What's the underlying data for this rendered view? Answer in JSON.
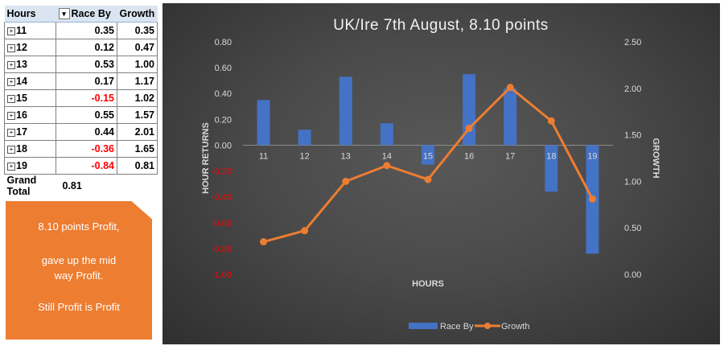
{
  "table": {
    "headers": [
      "Hours",
      "Race By",
      "Growth"
    ],
    "rows": [
      {
        "hour": "11",
        "race_by": "0.35",
        "growth": "0.35"
      },
      {
        "hour": "12",
        "race_by": "0.12",
        "growth": "0.47"
      },
      {
        "hour": "13",
        "race_by": "0.53",
        "growth": "1.00"
      },
      {
        "hour": "14",
        "race_by": "0.17",
        "growth": "1.17"
      },
      {
        "hour": "15",
        "race_by": "-0.15",
        "growth": "1.02"
      },
      {
        "hour": "16",
        "race_by": "0.55",
        "growth": "1.57"
      },
      {
        "hour": "17",
        "race_by": "0.44",
        "growth": "2.01"
      },
      {
        "hour": "18",
        "race_by": "-0.36",
        "growth": "1.65"
      },
      {
        "hour": "19",
        "race_by": "-0.84",
        "growth": "0.81"
      }
    ],
    "total_label": "Grand Total",
    "total_value": "0.81"
  },
  "note": {
    "line1": "8.10 points Profit,",
    "line2": "gave up the mid",
    "line3": "way Profit.",
    "line4": "Still Profit is Profit"
  },
  "colors": {
    "bar": "#4472c4",
    "line": "#ed7d31",
    "note_bg": "#ed7d31",
    "negative_text": "#ff0000"
  },
  "chart_data": {
    "type": "bar",
    "title": "UK/Ire 7th August, 8.10 points",
    "xlabel": "HOURS",
    "ylabel": "HOUR RETURNS",
    "y2label": "GROWTH",
    "categories": [
      "11",
      "12",
      "13",
      "14",
      "15",
      "16",
      "17",
      "18",
      "19"
    ],
    "series": [
      {
        "name": "Race By",
        "type": "bar",
        "axis": "left",
        "values": [
          0.35,
          0.12,
          0.53,
          0.17,
          -0.15,
          0.55,
          0.44,
          -0.36,
          -0.84
        ]
      },
      {
        "name": "Growth",
        "type": "line",
        "axis": "right",
        "values": [
          0.35,
          0.47,
          1.0,
          1.17,
          1.02,
          1.57,
          2.01,
          1.65,
          0.81
        ]
      }
    ],
    "ylim": [
      -1.0,
      0.8
    ],
    "y2lim": [
      0.0,
      2.5
    ],
    "y_ticks": [
      "0.80",
      "0.60",
      "0.40",
      "0.20",
      "0.00",
      "-0.20",
      "-0.40",
      "-0.60",
      "-0.80",
      "-1.00"
    ],
    "y2_ticks": [
      "2.50",
      "2.00",
      "1.50",
      "1.00",
      "0.50",
      "0.00"
    ],
    "grid": false,
    "legend": "bottom"
  }
}
